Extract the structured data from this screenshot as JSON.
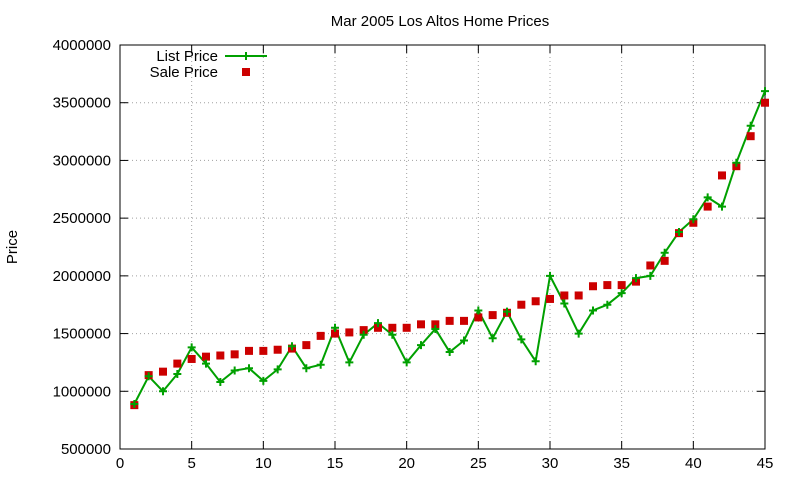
{
  "chart_data": {
    "type": "line",
    "title": "Mar 2005 Los Altos Home Prices",
    "xlabel": "",
    "ylabel": "Price",
    "xlim": [
      0,
      45
    ],
    "ylim": [
      500000,
      4000000
    ],
    "x_ticks": [
      0,
      5,
      10,
      15,
      20,
      25,
      30,
      35,
      40,
      45
    ],
    "y_ticks": [
      500000,
      1000000,
      1500000,
      2000000,
      2500000,
      3000000,
      3500000,
      4000000
    ],
    "grid": true,
    "legend_position": "top-left",
    "series": [
      {
        "name": "List Price",
        "style": "line-with-plus-markers",
        "color": "#00a000",
        "x": [
          1,
          2,
          3,
          4,
          5,
          6,
          7,
          8,
          9,
          10,
          11,
          12,
          13,
          14,
          15,
          16,
          17,
          18,
          19,
          20,
          21,
          22,
          23,
          24,
          25,
          26,
          27,
          28,
          29,
          30,
          31,
          32,
          33,
          34,
          35,
          36,
          37,
          38,
          39,
          40,
          41,
          42,
          43,
          44,
          45
        ],
        "values": [
          890000,
          1130000,
          1000000,
          1150000,
          1380000,
          1240000,
          1080000,
          1180000,
          1200000,
          1090000,
          1190000,
          1390000,
          1200000,
          1230000,
          1550000,
          1250000,
          1490000,
          1590000,
          1490000,
          1250000,
          1400000,
          1540000,
          1340000,
          1440000,
          1700000,
          1460000,
          1690000,
          1450000,
          1260000,
          2000000,
          1760000,
          1500000,
          1700000,
          1750000,
          1850000,
          1980000,
          2000000,
          2200000,
          2380000,
          2490000,
          2680000,
          2600000,
          2980000,
          3300000,
          3600000
        ]
      },
      {
        "name": "Sale Price",
        "style": "square-markers",
        "color": "#cc0000",
        "x": [
          1,
          2,
          3,
          4,
          5,
          6,
          7,
          8,
          9,
          10,
          11,
          12,
          13,
          14,
          15,
          16,
          17,
          18,
          19,
          20,
          21,
          22,
          23,
          24,
          25,
          26,
          27,
          28,
          29,
          30,
          31,
          32,
          33,
          34,
          35,
          36,
          37,
          38,
          39,
          40,
          41,
          42,
          43,
          44,
          45
        ],
        "values": [
          880000,
          1140000,
          1170000,
          1240000,
          1280000,
          1300000,
          1310000,
          1320000,
          1350000,
          1350000,
          1360000,
          1370000,
          1400000,
          1480000,
          1500000,
          1510000,
          1530000,
          1550000,
          1550000,
          1550000,
          1580000,
          1580000,
          1610000,
          1610000,
          1640000,
          1660000,
          1680000,
          1750000,
          1780000,
          1800000,
          1830000,
          1830000,
          1910000,
          1920000,
          1920000,
          1950000,
          2090000,
          2130000,
          2370000,
          2460000,
          2600000,
          2870000,
          2950000,
          3210000,
          3500000
        ]
      }
    ]
  }
}
